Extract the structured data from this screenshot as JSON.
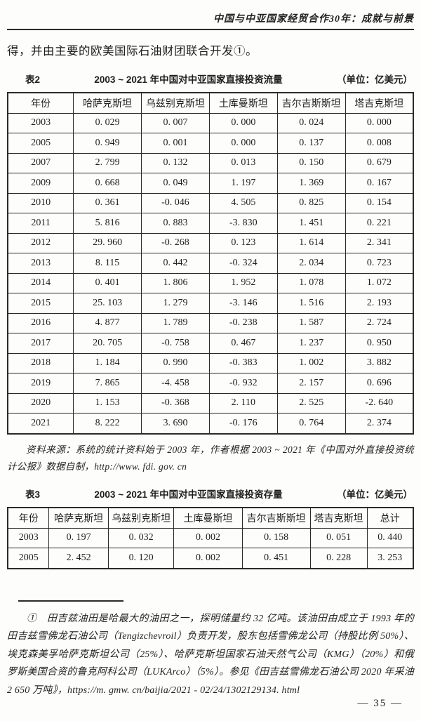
{
  "page": {
    "running_head": "中国与中亚国家经贸合作30年：成就与前景",
    "intro_text": "得，并由主要的欧美国际石油财团联合开发①。",
    "page_number": "— 35 —"
  },
  "table2": {
    "label": "表2",
    "title": "2003 ~ 2021 年中国对中亚国家直接投资流量",
    "unit": "（单位：亿美元）",
    "headers": [
      "年份",
      "哈萨克斯坦",
      "乌兹别克斯坦",
      "土库曼斯坦",
      "吉尔吉斯斯坦",
      "塔吉克斯坦"
    ],
    "rows": [
      [
        "2003",
        "0. 029",
        "0. 007",
        "0. 000",
        "0. 024",
        "0. 000"
      ],
      [
        "2005",
        "0. 949",
        "0. 001",
        "0. 000",
        "0. 137",
        "0. 008"
      ],
      [
        "2007",
        "2. 799",
        "0. 132",
        "0. 013",
        "0. 150",
        "0. 679"
      ],
      [
        "2009",
        "0. 668",
        "0. 049",
        "1. 197",
        "1. 369",
        "0. 167"
      ],
      [
        "2010",
        "0. 361",
        "-0. 046",
        "4. 505",
        "0. 825",
        "0. 154"
      ],
      [
        "2011",
        "5. 816",
        "0. 883",
        "-3. 830",
        "1. 451",
        "0. 221"
      ],
      [
        "2012",
        "29. 960",
        "-0. 268",
        "0. 123",
        "1. 614",
        "2. 341"
      ],
      [
        "2013",
        "8. 115",
        "0. 442",
        "-0. 324",
        "2. 034",
        "0. 723"
      ],
      [
        "2014",
        "0. 401",
        "1. 806",
        "1. 952",
        "1. 078",
        "1. 072"
      ],
      [
        "2015",
        "25. 103",
        "1. 279",
        "-3. 146",
        "1. 516",
        "2. 193"
      ],
      [
        "2016",
        "4. 877",
        "1. 789",
        "-0. 238",
        "1. 587",
        "2. 724"
      ],
      [
        "2017",
        "20. 705",
        "-0. 758",
        "0. 467",
        "1. 237",
        "0. 950"
      ],
      [
        "2018",
        "1. 184",
        "0. 990",
        "-0. 383",
        "1. 002",
        "3. 882"
      ],
      [
        "2019",
        "7. 865",
        "-4. 458",
        "-0. 932",
        "2. 157",
        "0. 696"
      ],
      [
        "2020",
        "1. 153",
        "-0. 368",
        "2. 110",
        "2. 525",
        "-2. 640"
      ],
      [
        "2021",
        "8. 222",
        "3. 690",
        "-0. 176",
        "0. 764",
        "2. 374"
      ]
    ],
    "source": "资料来源：系统的统计资料始于 2003 年，作者根据 2003 ~ 2021 年《中国对外直接投资统计公报》数据自制，http://www. fdi. gov. cn"
  },
  "table3": {
    "label": "表3",
    "title": "2003 ~ 2021 年中国对中亚国家直接投资存量",
    "unit": "（单位：亿美元）",
    "headers": [
      "年份",
      "哈萨克斯坦",
      "乌兹别克斯坦",
      "土库曼斯坦",
      "吉尔吉斯斯坦",
      "塔吉克斯坦",
      "总计"
    ],
    "rows": [
      [
        "2003",
        "0. 197",
        "0. 032",
        "0. 002",
        "0. 158",
        "0. 051",
        "0. 440"
      ],
      [
        "2005",
        "2. 452",
        "0. 120",
        "0. 002",
        "0. 451",
        "0. 228",
        "3. 253"
      ]
    ]
  },
  "footnote": {
    "text": "①　田吉兹油田是哈最大的油田之一，探明储量约 32 亿吨。该油田由成立于 1993 年的田吉兹雪佛龙石油公司（Tengizchevroil）负责开发，股东包括雪佛龙公司（持股比例 50%）、埃克森美孚哈萨克斯坦公司（25%）、哈萨克斯坦国家石油天然气公司（KMG）（20%）和俄罗斯美国合资的鲁克阿科公司（LUKArco）（5%）。参见《田吉兹雪佛龙石油公司 2020 年采油 2 650 万吨》，https://m. gmw. cn/baijia/2021 - 02/24/1302129134. html"
  }
}
